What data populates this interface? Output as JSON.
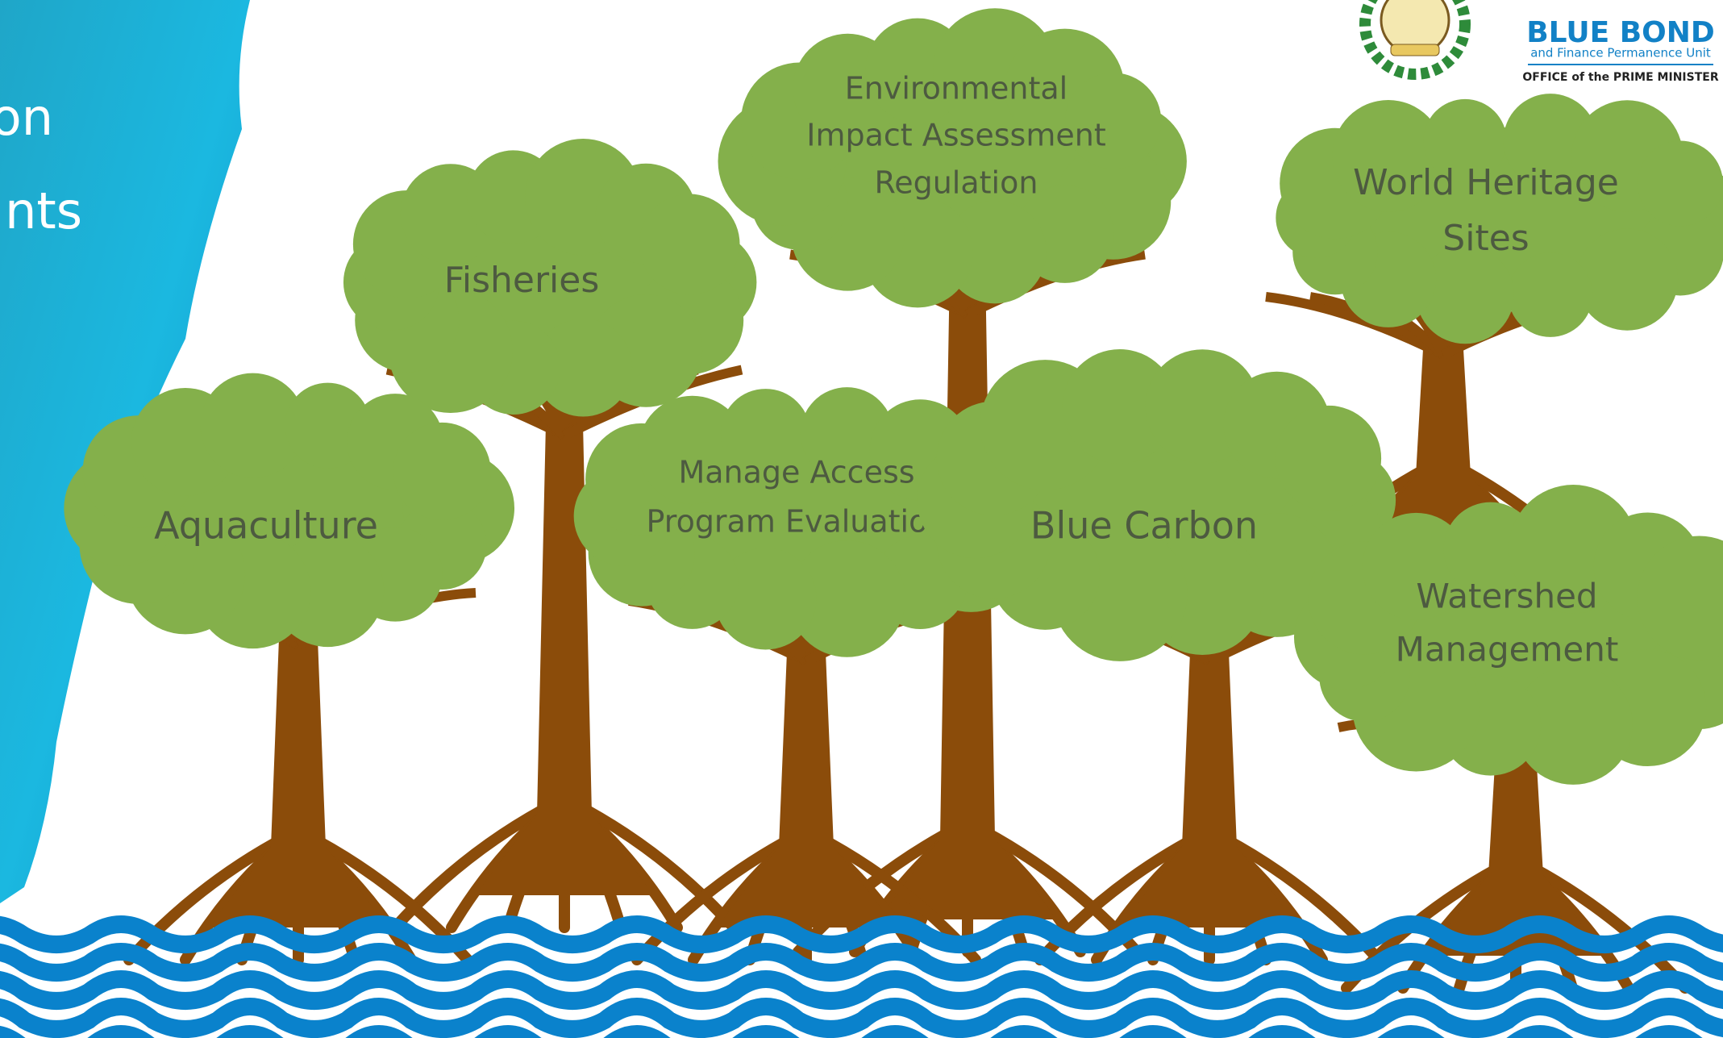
{
  "title_fragments": [
    "on",
    "nts"
  ],
  "logo": {
    "name": "BLUE BOND",
    "subtitle": "and Finance Permanence Unit",
    "office": "OFFICE of the PRIME MINISTER"
  },
  "trees": [
    {
      "lines": [
        "Environmental",
        "Impact Assessment",
        "Regulation"
      ]
    },
    {
      "lines": [
        "World Heritage",
        "Sites"
      ]
    },
    {
      "lines": [
        "Fisheries"
      ]
    },
    {
      "lines": [
        "Manage Access",
        "Program Evaluation"
      ]
    },
    {
      "lines": [
        "Blue Carbon"
      ]
    },
    {
      "lines": [
        "Aquaculture"
      ]
    },
    {
      "lines": [
        "Watershed",
        "Management"
      ]
    }
  ]
}
